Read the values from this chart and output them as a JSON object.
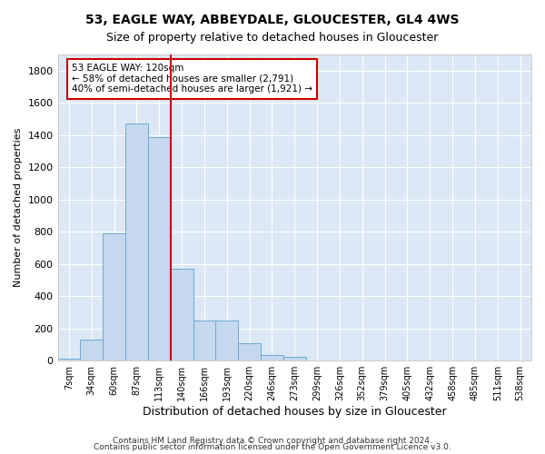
{
  "title_line1": "53, EAGLE WAY, ABBEYDALE, GLOUCESTER, GL4 4WS",
  "title_line2": "Size of property relative to detached houses in Gloucester",
  "xlabel": "Distribution of detached houses by size in Gloucester",
  "ylabel": "Number of detached properties",
  "bar_color": "#c5d8ee",
  "bar_edge_color": "#6aaad4",
  "background_color": "#dce8f5",
  "grid_color": "#ffffff",
  "annotation_text": "53 EAGLE WAY: 120sqm\n← 58% of detached houses are smaller (2,791)\n40% of semi-detached houses are larger (1,921) →",
  "vline_color": "#cc0000",
  "annotation_box_edge": "#cc0000",
  "bin_labels": [
    "7sqm",
    "34sqm",
    "60sqm",
    "87sqm",
    "113sqm",
    "140sqm",
    "166sqm",
    "193sqm",
    "220sqm",
    "246sqm",
    "273sqm",
    "299sqm",
    "326sqm",
    "352sqm",
    "379sqm",
    "405sqm",
    "432sqm",
    "458sqm",
    "485sqm",
    "511sqm",
    "538sqm"
  ],
  "bar_heights": [
    12,
    130,
    790,
    1470,
    1390,
    570,
    250,
    250,
    110,
    35,
    25,
    0,
    0,
    0,
    0,
    0,
    0,
    0,
    0,
    0,
    0
  ],
  "ylim": [
    0,
    1900
  ],
  "yticks": [
    0,
    200,
    400,
    600,
    800,
    1000,
    1200,
    1400,
    1600,
    1800
  ],
  "vline_pos": 4.5,
  "footnote1": "Contains HM Land Registry data © Crown copyright and database right 2024.",
  "footnote2": "Contains public sector information licensed under the Open Government Licence v3.0."
}
